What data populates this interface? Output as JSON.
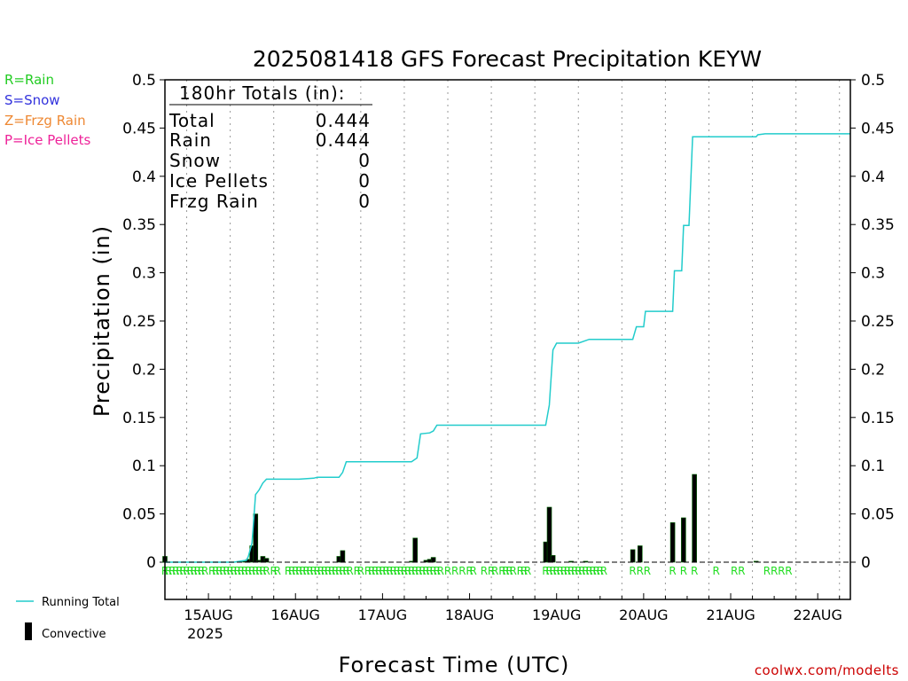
{
  "chart_data": {
    "type": "bar",
    "title": "2025081418 GFS Forecast Precipitation KEYW",
    "xlabel": "Forecast Time (UTC)",
    "ylabel": "Precipitation (in)",
    "ylim": [
      0,
      0.5
    ],
    "yticks": [
      "0",
      "0.05",
      "0.1",
      "0.15",
      "0.2",
      "0.25",
      "0.3",
      "0.35",
      "0.4",
      "0.45",
      "0.5"
    ],
    "x_range_hours": [
      -6,
      183
    ],
    "day_labels": [
      {
        "hour": 6,
        "label": "15AUG",
        "sub": "2025"
      },
      {
        "hour": 30,
        "label": "16AUG",
        "sub": ""
      },
      {
        "hour": 54,
        "label": "17AUG",
        "sub": ""
      },
      {
        "hour": 78,
        "label": "18AUG",
        "sub": ""
      },
      {
        "hour": 102,
        "label": "19AUG",
        "sub": ""
      },
      {
        "hour": 126,
        "label": "20AUG",
        "sub": ""
      },
      {
        "hour": 150,
        "label": "21AUG",
        "sub": ""
      },
      {
        "hour": 174,
        "label": "22AUG",
        "sub": ""
      }
    ],
    "grid": "dotted vertical at 00Z and 12Z",
    "ptype_legend": [
      {
        "text": "R=Rain",
        "color": "#22cc22"
      },
      {
        "text": "S=Snow",
        "color": "#3333dd"
      },
      {
        "text": "Z=Frzg Rain",
        "color": "#ee8833"
      },
      {
        "text": "P=Ice Pellets",
        "color": "#ee2299"
      }
    ],
    "totals": {
      "header": "180hr Totals (in):",
      "rows": [
        {
          "label": "Total",
          "value": "0.444"
        },
        {
          "label": "Rain",
          "value": "0.444"
        },
        {
          "label": "Snow",
          "value": "0"
        },
        {
          "label": "Ice Pellets",
          "value": "0"
        },
        {
          "label": "Frzg Rain",
          "value": "0"
        }
      ]
    },
    "series": [
      {
        "name": "Running Total",
        "kind": "line",
        "color": "#22cccc",
        "points": [
          [
            -6,
            0
          ],
          [
            13,
            0
          ],
          [
            16.5,
            0.002
          ],
          [
            17,
            0.006
          ],
          [
            18,
            0.02
          ],
          [
            19,
            0.07
          ],
          [
            20,
            0.075
          ],
          [
            21,
            0.082
          ],
          [
            22,
            0.086
          ],
          [
            31,
            0.086
          ],
          [
            35,
            0.087
          ],
          [
            36,
            0.088
          ],
          [
            42,
            0.088
          ],
          [
            43,
            0.093
          ],
          [
            44,
            0.104
          ],
          [
            62,
            0.104
          ],
          [
            63.5,
            0.108
          ],
          [
            64.5,
            0.133
          ],
          [
            67,
            0.134
          ],
          [
            68,
            0.136
          ],
          [
            69,
            0.142
          ],
          [
            99,
            0.142
          ],
          [
            100,
            0.163
          ],
          [
            101,
            0.22
          ],
          [
            102,
            0.227
          ],
          [
            108,
            0.227
          ],
          [
            111,
            0.231
          ],
          [
            123,
            0.231
          ],
          [
            124,
            0.244
          ],
          [
            126,
            0.244
          ],
          [
            126.5,
            0.26
          ],
          [
            134,
            0.26
          ],
          [
            134.5,
            0.302
          ],
          [
            136.5,
            0.302
          ],
          [
            137,
            0.349
          ],
          [
            138.5,
            0.349
          ],
          [
            139.5,
            0.441
          ],
          [
            157,
            0.441
          ],
          [
            157.5,
            0.443
          ],
          [
            159.5,
            0.444
          ],
          [
            183,
            0.444
          ]
        ]
      },
      {
        "name": "Convective",
        "kind": "bar",
        "color": "#000000",
        "hours": [
          -6,
          16,
          17,
          18,
          19,
          20,
          21,
          22,
          42,
          43,
          62,
          63,
          66,
          67,
          68,
          99,
          100,
          101,
          106,
          110,
          123,
          125,
          134,
          137,
          140,
          157
        ],
        "values": [
          0.006,
          0.001,
          0.003,
          0.017,
          0.05,
          0.002,
          0.006,
          0.004,
          0.006,
          0.012,
          0.001,
          0.025,
          0.002,
          0.003,
          0.005,
          0.021,
          0.057,
          0.007,
          0.001,
          0.001,
          0.013,
          0.017,
          0.041,
          0.046,
          0.091,
          0.001
        ]
      }
    ],
    "precip_type_hours": [
      -6,
      -5,
      -4,
      -3,
      -2,
      -1,
      0,
      1,
      2,
      3,
      4,
      5,
      7,
      8,
      9,
      10,
      11,
      12,
      13,
      14,
      15,
      16,
      17,
      18,
      19,
      20,
      21,
      22,
      24,
      25,
      28,
      29,
      30,
      31,
      32,
      33,
      34,
      35,
      36,
      37,
      38,
      39,
      40,
      41,
      42,
      43,
      44,
      45,
      47,
      48,
      50,
      51,
      52,
      53,
      54,
      55,
      56,
      57,
      58,
      59,
      60,
      61,
      62,
      63,
      64,
      65,
      66,
      67,
      68,
      69,
      70,
      72,
      74,
      76,
      78,
      79,
      82,
      84,
      85,
      87,
      88,
      89,
      90,
      92,
      93,
      94,
      99,
      100,
      101,
      102,
      103,
      104,
      105,
      106,
      107,
      108,
      109,
      110,
      111,
      112,
      113,
      114,
      115,
      123,
      125,
      127,
      134,
      137,
      140,
      146,
      151,
      153,
      160,
      162,
      164,
      166
    ],
    "precip_type_letter": "R",
    "legend": [
      {
        "label": "Running Total",
        "symbol": "line",
        "color": "#22cccc"
      },
      {
        "label": "Convective",
        "symbol": "bar",
        "color": "#000000"
      }
    ]
  },
  "credit": "coolwx.com/modelts"
}
